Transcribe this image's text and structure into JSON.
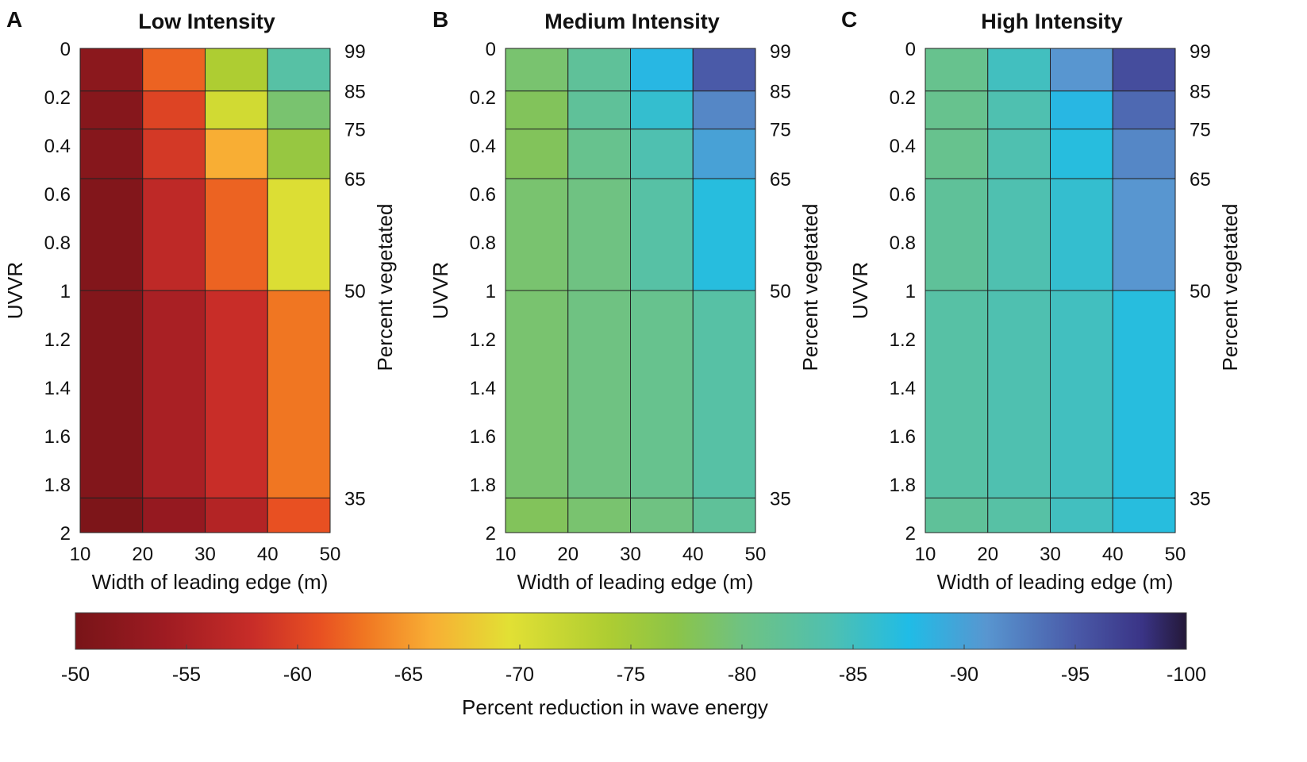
{
  "chart_data": [
    {
      "type": "heatmap",
      "panel_letter": "A",
      "title": "Low Intensity",
      "xlabel": "Width of leading edge (m)",
      "ylabel": "UVVR",
      "y2label": "Percent vegetated",
      "x_edges": [
        10,
        20,
        30,
        40,
        50
      ],
      "y_edges": [
        0.0101,
        0.176,
        0.333,
        0.538,
        1,
        1.857,
        2
      ],
      "values": [
        [
          -52,
          -62,
          -74,
          -83
        ],
        [
          -51.5,
          -60,
          -71,
          -79
        ],
        [
          -51.5,
          -59,
          -66,
          -76
        ],
        [
          -51,
          -57,
          -62,
          -70
        ],
        [
          -51,
          -55,
          -58,
          -63
        ],
        [
          -50.5,
          -53,
          -56,
          -61
        ]
      ]
    },
    {
      "type": "heatmap",
      "panel_letter": "B",
      "title": "Medium Intensity",
      "xlabel": "Width of leading edge (m)",
      "ylabel": "UVVR",
      "y2label": "Percent vegetated",
      "x_edges": [
        10,
        20,
        30,
        40,
        50
      ],
      "y_edges": [
        0.0101,
        0.176,
        0.333,
        0.538,
        1,
        1.857,
        2
      ],
      "values": [
        [
          -79,
          -82,
          -88,
          -95
        ],
        [
          -78,
          -82,
          -86,
          -92
        ],
        [
          -78,
          -81,
          -84,
          -90
        ],
        [
          -79,
          -80,
          -83,
          -87
        ],
        [
          -79,
          -80,
          -81,
          -83
        ],
        [
          -78,
          -79,
          -80,
          -82
        ]
      ]
    },
    {
      "type": "heatmap",
      "panel_letter": "C",
      "title": "High Intensity",
      "xlabel": "Width of leading edge (m)",
      "ylabel": "UVVR",
      "y2label": "Percent vegetated",
      "x_edges": [
        10,
        20,
        30,
        40,
        50
      ],
      "y_edges": [
        0.0101,
        0.176,
        0.333,
        0.538,
        1,
        1.857,
        2
      ],
      "values": [
        [
          -81,
          -85,
          -91,
          -96
        ],
        [
          -81,
          -84,
          -88,
          -94
        ],
        [
          -81,
          -84,
          -87,
          -92
        ],
        [
          -82,
          -84,
          -86,
          -91
        ],
        [
          -83,
          -84,
          -85,
          -87
        ],
        [
          -82,
          -83,
          -85,
          -87
        ]
      ]
    }
  ],
  "axes": {
    "xlim": [
      10,
      50
    ],
    "ylim": [
      0,
      2
    ],
    "x_ticks": [
      "10",
      "20",
      "30",
      "40",
      "50"
    ],
    "x_tick_values": [
      10,
      20,
      30,
      40,
      50
    ],
    "y_ticks": [
      "0",
      "0.2",
      "0.4",
      "0.6",
      "0.8",
      "1",
      "1.2",
      "1.4",
      "1.6",
      "1.8",
      "2"
    ],
    "y_tick_values": [
      0,
      0.2,
      0.4,
      0.6,
      0.8,
      1,
      1.2,
      1.4,
      1.6,
      1.8,
      2
    ],
    "y2_ticks": [
      "99",
      "85",
      "75",
      "65",
      "50",
      "35"
    ],
    "y2_tick_values": [
      0.0101,
      0.176,
      0.333,
      0.538,
      1,
      1.857
    ]
  },
  "colorbar": {
    "label": "Percent reduction in wave energy",
    "range": [
      -50,
      -100
    ],
    "ticks": [
      "-50",
      "-55",
      "-60",
      "-65",
      "-70",
      "-75",
      "-80",
      "-85",
      "-90",
      "-95",
      "-100"
    ],
    "tick_values": [
      -50,
      -55,
      -60,
      -65,
      -70,
      -75,
      -80,
      -85,
      -90,
      -95,
      -100
    ],
    "colormap": [
      [
        -50,
        "#781418"
      ],
      [
        -54,
        "#9e1b22"
      ],
      [
        -58,
        "#c82d28"
      ],
      [
        -61,
        "#e85022"
      ],
      [
        -63,
        "#f07622"
      ],
      [
        -66,
        "#f8ae34"
      ],
      [
        -69.5,
        "#e2e034"
      ],
      [
        -74,
        "#aecd32"
      ],
      [
        -77,
        "#8cc448"
      ],
      [
        -80,
        "#6fc282"
      ],
      [
        -84,
        "#4fc0b0"
      ],
      [
        -87.5,
        "#20bce6"
      ],
      [
        -91,
        "#5896d0"
      ],
      [
        -95,
        "#4a5aa8"
      ],
      [
        -98,
        "#3a3486"
      ],
      [
        -100,
        "#241838"
      ]
    ]
  }
}
